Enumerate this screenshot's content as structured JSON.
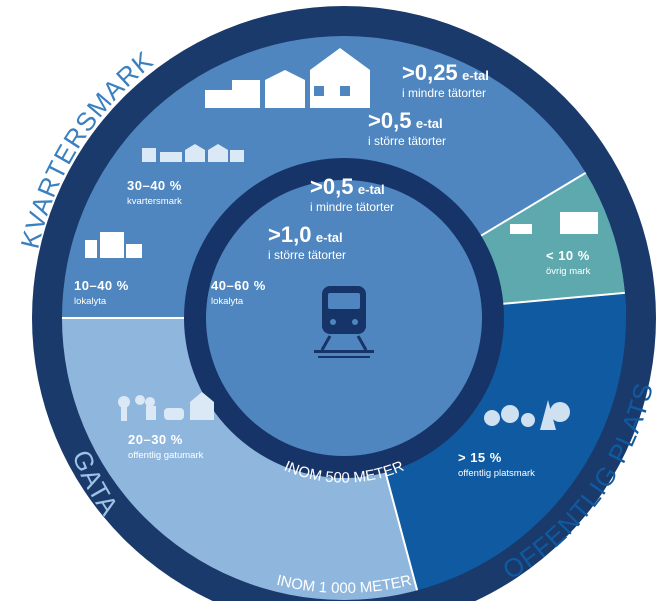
{
  "colors": {
    "outer_ring": "#1a3a6b",
    "kvartersmark": "#4f86bf",
    "gata": "#8fb7de",
    "offentlig_plats": "#0f5aa0",
    "ovrig_mark": "#5ea9ad",
    "inner_ring": "#173468",
    "kvartersmark_label": "#3a7fbf",
    "gata_label": "#9fc3e6"
  },
  "ring_labels": {
    "kvartersmark": "KVARTERSMARK",
    "gata": "GATA",
    "offentlig_plats": "OFFENTLIG PLATS",
    "inom_500": "INOM 500 METER",
    "inom_1000": "INOM 1 000 METER"
  },
  "density": {
    "outer_small": {
      "value": ">0,25",
      "unit": "e-tal",
      "sub": "i mindre tätorter"
    },
    "outer_large": {
      "value": ">0,5",
      "unit": "e-tal",
      "sub": "i större tätorter"
    },
    "inner_small": {
      "value": ">0,5",
      "unit": "e-tal",
      "sub": "i mindre tätorter"
    },
    "inner_large": {
      "value": ">1,0",
      "unit": "e-tal",
      "sub": "i större tätorter"
    }
  },
  "shares": {
    "kvartersmark": {
      "pct": "30–40 %",
      "label": "kvartersmark"
    },
    "lokalyta_outer": {
      "pct": "10–40 %",
      "label": "lokalyta"
    },
    "lokalyta_inner": {
      "pct": "40–60 %",
      "label": "lokalyta"
    },
    "ovrig": {
      "pct": "< 10 %",
      "label": "övrig mark"
    },
    "gatumark": {
      "pct": "20–30 %",
      "label": "offentlig gatumark"
    },
    "platsmark": {
      "pct": "> 15 %",
      "label": "offentlig platsmark"
    }
  },
  "icons": {
    "center": "train-icon",
    "houses_top": "buildings-icon",
    "small_houses": "small-houses-icon",
    "apartment": "apartment-building-icon",
    "industry": "industry-building-icon",
    "street": "street-people-icon",
    "park": "park-trees-icon"
  }
}
